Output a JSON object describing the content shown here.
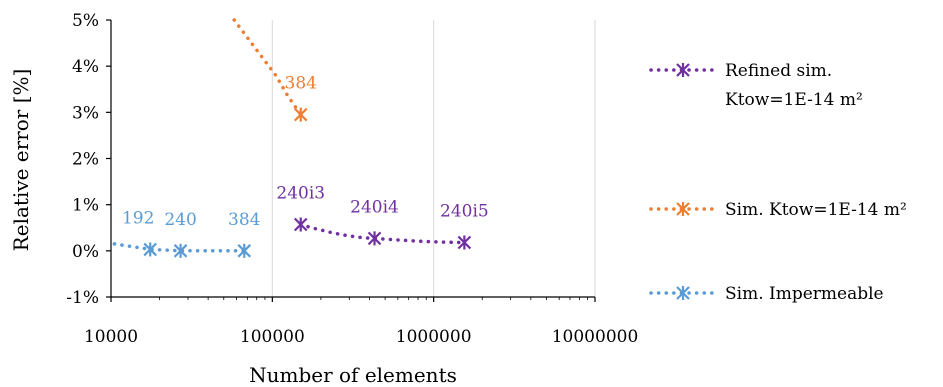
{
  "chart_data": {
    "type": "scatter",
    "x_scale": "log",
    "xlim": [
      10000,
      10000000
    ],
    "ylim": [
      -1,
      5
    ],
    "xlabel": "Number of elements",
    "ylabel": "Relative error [%]",
    "x_ticks": [
      {
        "value": 10000,
        "label": "10000"
      },
      {
        "value": 100000,
        "label": "100000"
      },
      {
        "value": 1000000,
        "label": "1000000"
      },
      {
        "value": 10000000,
        "label": "10000000"
      }
    ],
    "y_ticks": [
      {
        "value": 5,
        "label": "5%"
      },
      {
        "value": 4,
        "label": "4%"
      },
      {
        "value": 3,
        "label": "3%"
      },
      {
        "value": 2,
        "label": "2%"
      },
      {
        "value": 1,
        "label": "1%"
      },
      {
        "value": 0,
        "label": "0%"
      },
      {
        "value": -1,
        "label": "-1%"
      }
    ],
    "grid": "vertical",
    "legend_position": "right",
    "series": [
      {
        "name": "Refined sim. Ktow=1E-14 m²",
        "legend_lines": [
          "Refined sim.",
          "Ktow=1E-14 m²"
        ],
        "color": "#7030a0",
        "marker": "asterisk",
        "points": [
          {
            "x": 150000,
            "y": 0.57,
            "label": "240i3"
          },
          {
            "x": 430000,
            "y": 0.27,
            "label": "240i4"
          },
          {
            "x": 1550000,
            "y": 0.18,
            "label": "240i5"
          }
        ]
      },
      {
        "name": "Sim. Ktow=1E-14 m²",
        "legend_lines": [
          "Sim. Ktow=1E-14 m²"
        ],
        "color": "#ed7d31",
        "marker": "asterisk",
        "points": [
          {
            "x": 150000,
            "y": 2.95,
            "label": "384"
          }
        ],
        "trend": [
          {
            "x": 58000,
            "y": 5.0
          },
          {
            "x": 80000,
            "y": 4.35
          },
          {
            "x": 105000,
            "y": 3.8
          },
          {
            "x": 125000,
            "y": 3.35
          },
          {
            "x": 150000,
            "y": 2.95
          }
        ]
      },
      {
        "name": "Sim. Impermeable",
        "legend_lines": [
          "Sim. Impermeable"
        ],
        "color": "#5b9bd5",
        "marker": "asterisk",
        "points": [
          {
            "x": 17500,
            "y": 0.03,
            "label": "192"
          },
          {
            "x": 27000,
            "y": 0.0,
            "label": "240"
          },
          {
            "x": 67000,
            "y": 0.0,
            "label": "384"
          }
        ],
        "trend": [
          {
            "x": 10500,
            "y": 0.15
          },
          {
            "x": 17500,
            "y": 0.03
          },
          {
            "x": 27000,
            "y": 0.0
          },
          {
            "x": 67000,
            "y": 0.0
          }
        ]
      }
    ]
  }
}
